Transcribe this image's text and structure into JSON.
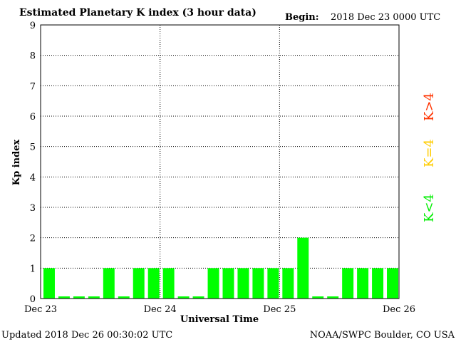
{
  "header": {
    "title": "Estimated Planetary K index (3 hour data)",
    "begin_label": "Begin:",
    "begin_value": "2018 Dec 23 0000 UTC"
  },
  "footer": {
    "updated": "Updated 2018 Dec 26 00:30:02 UTC",
    "source": "NOAA/SWPC Boulder, CO USA"
  },
  "legend": {
    "high": {
      "label": "K>4",
      "color": "#ff3300"
    },
    "mid": {
      "label": "K=4",
      "color": "#ffcc00"
    },
    "low": {
      "label": "K<4",
      "color": "#00ee00"
    }
  },
  "chart_data": {
    "type": "bar",
    "title": "Estimated Planetary K index (3 hour data)",
    "xlabel": "Universal Time",
    "ylabel": "Kp index",
    "ylim": [
      0,
      9
    ],
    "yticks": [
      "0",
      "1",
      "2",
      "3",
      "4",
      "5",
      "6",
      "7",
      "8",
      "9"
    ],
    "xticks": [
      "Dec 23",
      "Dec 24",
      "Dec 25",
      "Dec 26"
    ],
    "grid": "dotted",
    "bar_color": "#00ff00",
    "values": [
      1,
      0,
      0,
      0,
      1,
      0,
      1,
      1,
      1,
      0,
      0,
      1,
      1,
      1,
      1,
      1,
      1,
      2,
      0,
      0,
      1,
      1,
      1,
      1
    ]
  }
}
